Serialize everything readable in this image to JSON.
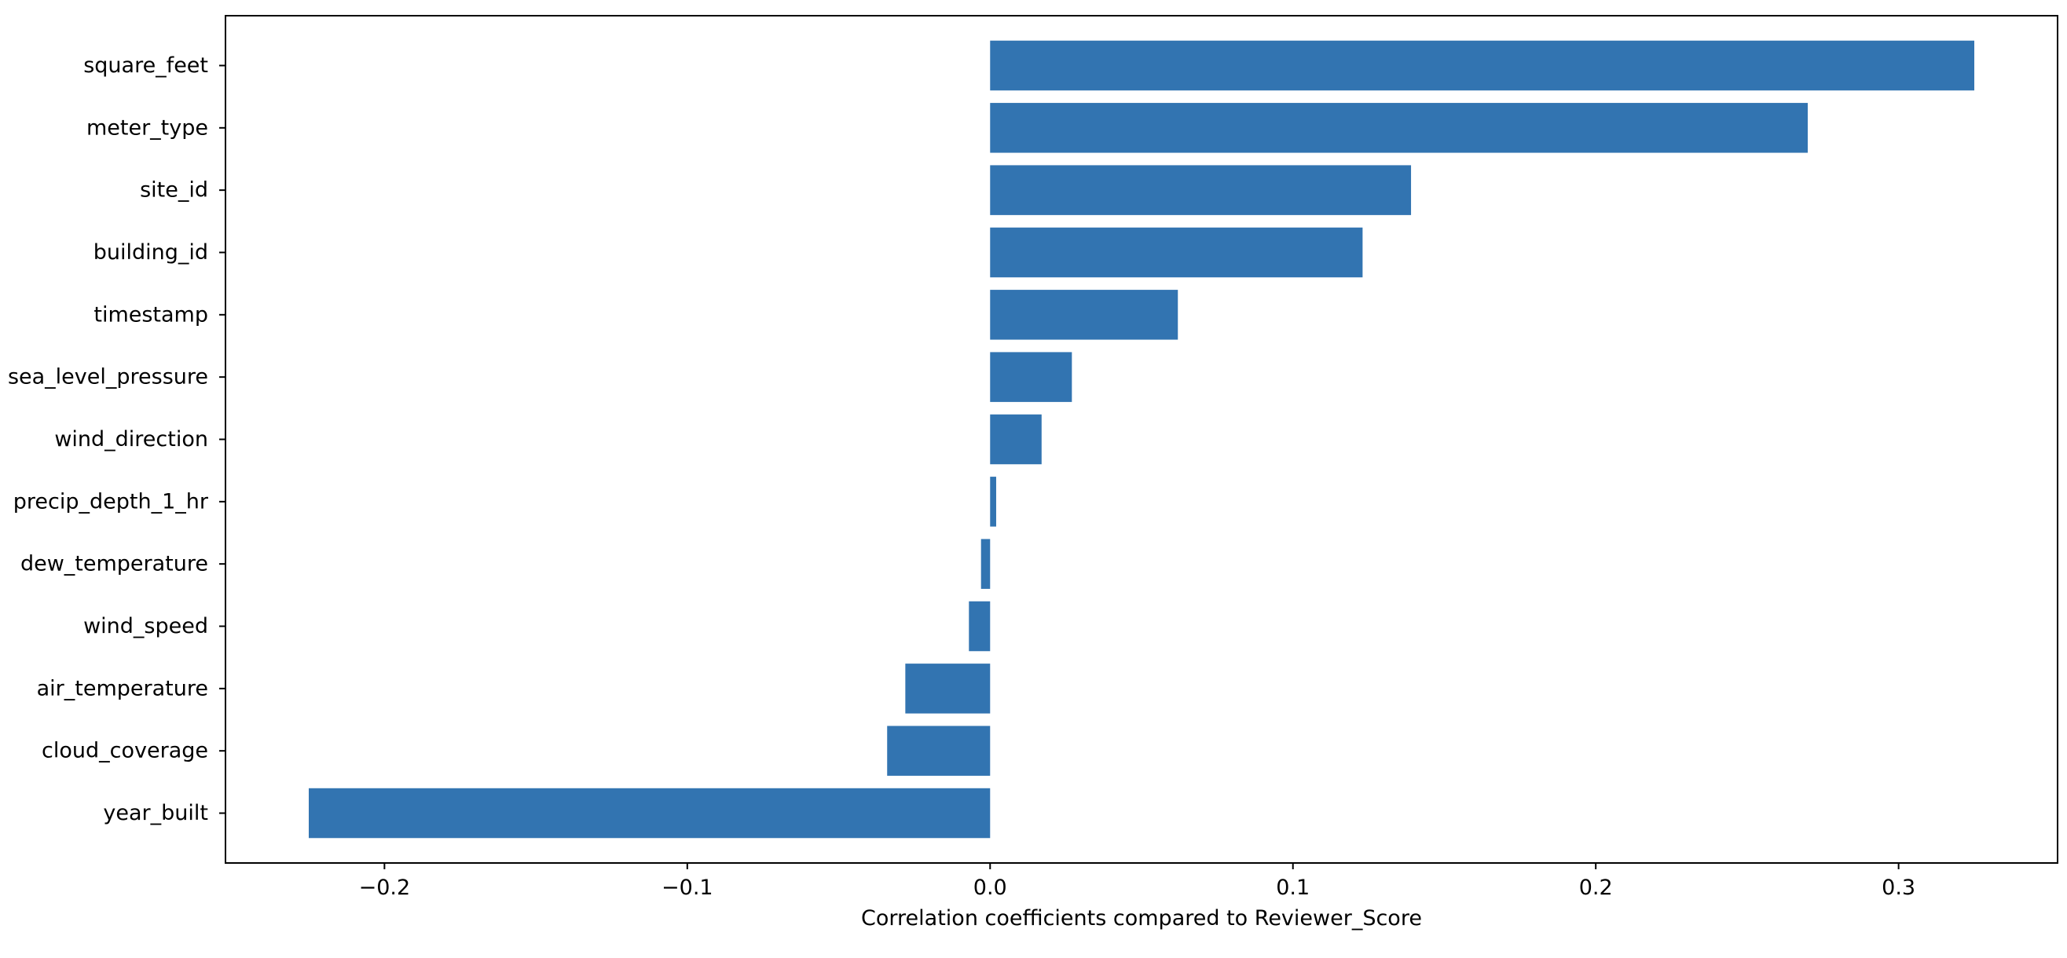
{
  "chart_data": {
    "type": "bar",
    "orientation": "horizontal",
    "title": "",
    "xlabel": "Correlation coefficients compared to Reviewer_Score",
    "ylabel": "",
    "xlim": [
      -0.2525,
      0.3525
    ],
    "xticks": [
      -0.2,
      -0.1,
      0.0,
      0.1,
      0.2,
      0.3
    ],
    "xtick_labels": [
      "−0.2",
      "−0.1",
      "0.0",
      "0.1",
      "0.2",
      "0.3"
    ],
    "grid": false,
    "bar_color": "#3274b1",
    "categories": [
      "square_feet",
      "meter_type",
      "site_id",
      "building_id",
      "timestamp",
      "sea_level_pressure",
      "wind_direction",
      "precip_depth_1_hr",
      "dew_temperature",
      "wind_speed",
      "air_temperature",
      "cloud_coverage",
      "year_built"
    ],
    "values": [
      0.325,
      0.27,
      0.139,
      0.123,
      0.062,
      0.027,
      0.017,
      0.002,
      -0.003,
      -0.007,
      -0.028,
      -0.034,
      -0.225
    ]
  }
}
